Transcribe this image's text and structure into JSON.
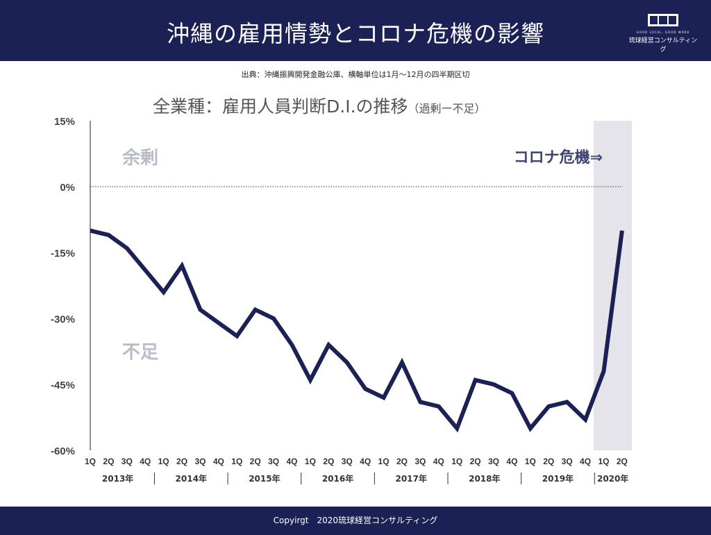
{
  "header": {
    "title": "沖縄の雇用情勢とコロナ危機の影響",
    "logo_tagline": "GOOD LOCAL, GOOD WORK",
    "logo_name": "琉球経営コンサルティング"
  },
  "source": "出典：沖縄振興開発金融公庫、横軸単位は1月〜12月の四半期区切",
  "footer": "Copyirgt　2020琉球経営コンサルティング",
  "chart_data": {
    "type": "line",
    "title": "全業種：雇用人員判断D.I.の推移",
    "subtitle": "（過剰ー不足）",
    "ylim": [
      -60,
      15
    ],
    "yticks": [
      "15%",
      "0%",
      "-15%",
      "-30%",
      "-45%",
      "-60%"
    ],
    "ytick_values": [
      15,
      0,
      -15,
      -30,
      -45,
      -60
    ],
    "quarters": [
      "1Q",
      "2Q",
      "3Q",
      "4Q",
      "1Q",
      "2Q",
      "3Q",
      "4Q",
      "1Q",
      "2Q",
      "3Q",
      "4Q",
      "1Q",
      "2Q",
      "3Q",
      "4Q",
      "1Q",
      "2Q",
      "3Q",
      "4Q",
      "1Q",
      "2Q",
      "3Q",
      "4Q",
      "1Q",
      "2Q",
      "3Q",
      "4Q",
      "1Q",
      "2Q"
    ],
    "years": [
      {
        "label": "2013年",
        "quarters": 4
      },
      {
        "label": "2014年",
        "quarters": 4
      },
      {
        "label": "2015年",
        "quarters": 4
      },
      {
        "label": "2016年",
        "quarters": 4
      },
      {
        "label": "2017年",
        "quarters": 4
      },
      {
        "label": "2018年",
        "quarters": 4
      },
      {
        "label": "2019年",
        "quarters": 4
      },
      {
        "label": "2020年",
        "quarters": 2
      }
    ],
    "values": [
      -10,
      -11,
      -14,
      -19,
      -24,
      -18,
      -28,
      -31,
      -34,
      -28,
      -30,
      -36,
      -44,
      -36,
      -40,
      -46,
      -48,
      -40,
      -49,
      -50,
      -55,
      -44,
      -45,
      -47,
      -55,
      -50,
      -49,
      -53,
      -42,
      -10
    ],
    "annotations": {
      "surplus": "余剰",
      "shortage": "不足",
      "crisis": "コロナ危機⇒"
    },
    "highlight": {
      "from_index": 28,
      "to_index": 29,
      "color": "#e4e4ea"
    },
    "line_color": "#1b2155",
    "zero_line": "dotted",
    "grid": false
  }
}
